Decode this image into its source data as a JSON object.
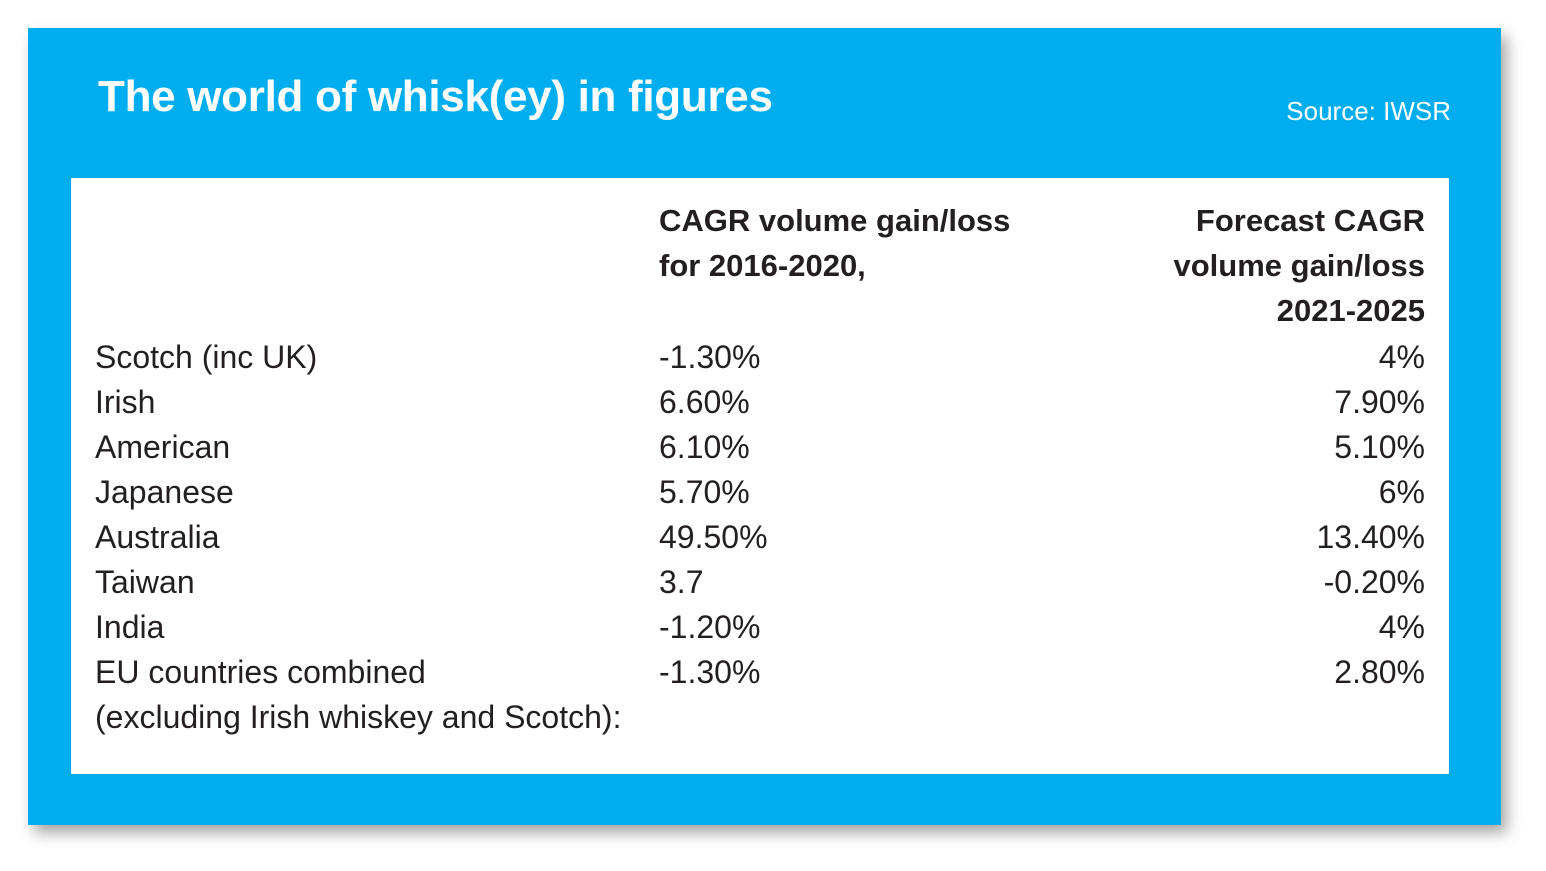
{
  "colors": {
    "accent": "#00aeef",
    "panel": "#ffffff",
    "text": "#231f20",
    "title_text": "#ffffff"
  },
  "header": {
    "title": "The world of whisk(ey) in figures",
    "source": "Source: IWSR"
  },
  "chart_data": {
    "type": "table",
    "title": "The world of whisk(ey) in figures",
    "source": "Source: IWSR",
    "columns": [
      "",
      "CAGR volume gain/loss for 2016-2020,",
      "Forecast CAGR volume gain/loss 2021-2025"
    ],
    "column_lines": {
      "a": [
        "CAGR volume gain/loss",
        "for 2016-2020,"
      ],
      "b": [
        "Forecast CAGR",
        "volume gain/loss",
        "2021-2025"
      ]
    },
    "rows": [
      {
        "label": [
          "Scotch (inc UK)"
        ],
        "cagr_2016_2020": "-1.30%",
        "forecast_2021_2025": "4%"
      },
      {
        "label": [
          "Irish"
        ],
        "cagr_2016_2020": "6.60%",
        "forecast_2021_2025": "7.90%"
      },
      {
        "label": [
          "American"
        ],
        "cagr_2016_2020": "6.10%",
        "forecast_2021_2025": "5.10%"
      },
      {
        "label": [
          "Japanese"
        ],
        "cagr_2016_2020": "5.70%",
        "forecast_2021_2025": "6%"
      },
      {
        "label": [
          "Australia"
        ],
        "cagr_2016_2020": "49.50%",
        "forecast_2021_2025": "13.40%"
      },
      {
        "label": [
          "Taiwan"
        ],
        "cagr_2016_2020": "3.7",
        "forecast_2021_2025": "-0.20%"
      },
      {
        "label": [
          "India"
        ],
        "cagr_2016_2020": "-1.20%",
        "forecast_2021_2025": "4%"
      },
      {
        "label": [
          "EU countries combined",
          "(excluding Irish whiskey and Scotch):"
        ],
        "cagr_2016_2020": "-1.30%",
        "forecast_2021_2025": "2.80%"
      }
    ]
  }
}
